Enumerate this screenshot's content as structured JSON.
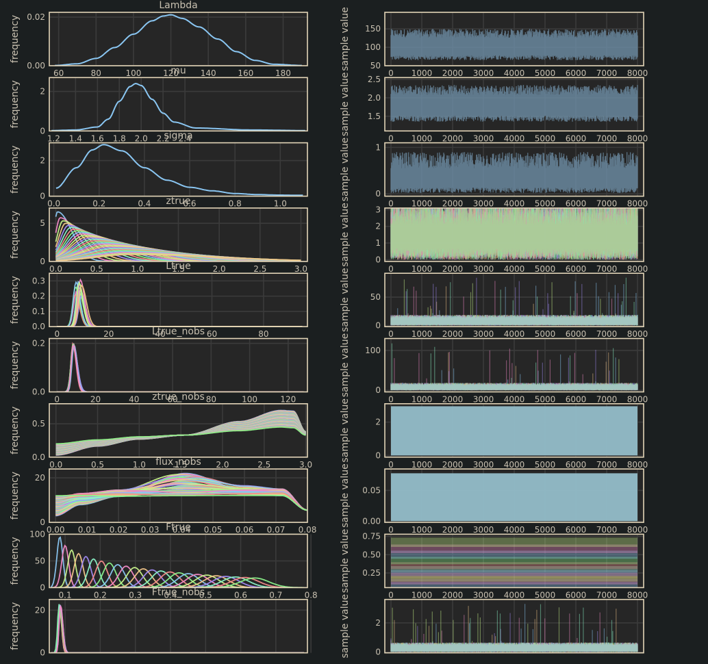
{
  "figure": {
    "style": {
      "background": "#1b1f20",
      "axes_face": "#262626",
      "spine": "#e3d5b8",
      "grid": "#3b3b3b",
      "text": "#c8c0b0"
    },
    "palette": [
      "#8ac6f2",
      "#f28ac6",
      "#c6f28a",
      "#f2c68a",
      "#a08af2",
      "#8af2c6",
      "#f28a8a",
      "#8af28a"
    ]
  },
  "chart_data": [
    {
      "type": "line",
      "role": "density",
      "title": "Lambda",
      "ylabel": "frequency",
      "xlim": [
        55,
        193
      ],
      "ylim": [
        0,
        0.022
      ],
      "xticks": [
        60,
        80,
        100,
        120,
        140,
        160,
        180
      ],
      "xticklabels": [
        "60",
        "80",
        "100",
        "120",
        "140",
        "160",
        "180"
      ],
      "yticks": [
        0,
        0.02
      ],
      "yticklabels": [
        "0.00",
        "0.02"
      ],
      "series": [
        {
          "x": [
            58,
            70,
            80,
            90,
            100,
            110,
            116,
            120,
            126,
            135,
            145,
            155,
            165,
            175,
            190
          ],
          "y": [
            0.0001,
            0.0008,
            0.003,
            0.0075,
            0.013,
            0.0185,
            0.0205,
            0.021,
            0.0195,
            0.016,
            0.011,
            0.0058,
            0.0022,
            0.0006,
            0.0001
          ]
        }
      ]
    },
    {
      "type": "line",
      "role": "trace",
      "ylabel": "sample value",
      "xlim": [
        -200,
        8200
      ],
      "ylim": [
        50,
        195
      ],
      "xticks": [
        0,
        1000,
        2000,
        3000,
        4000,
        5000,
        6000,
        7000,
        8000
      ],
      "xticklabels": [
        "0",
        "1000",
        "2000",
        "3000",
        "4000",
        "5000",
        "6000",
        "7000",
        "8000"
      ],
      "yticks": [
        50,
        100,
        150
      ],
      "yticklabels": [
        "50",
        "100",
        "150"
      ],
      "band": {
        "lo": 65,
        "hi": 150,
        "mean": 110,
        "jitter": 0.6
      },
      "series_count": 1
    },
    {
      "type": "line",
      "role": "density",
      "title": "mu",
      "ylabel": "frequency",
      "xlim": [
        1.16,
        3.52
      ],
      "ylim": [
        0,
        2.7
      ],
      "xticks": [
        1.2,
        1.4,
        1.6,
        1.8,
        2.0,
        2.2,
        2.4
      ],
      "xticklabels": [
        "1.2",
        "1.4",
        "1.6",
        "1.8",
        "2.0",
        "2.2",
        "2.4"
      ],
      "yticks": [
        0,
        2
      ],
      "yticklabels": [
        "0",
        "2"
      ],
      "series": [
        {
          "x": [
            1.18,
            1.4,
            1.6,
            1.7,
            1.8,
            1.9,
            1.95,
            2.0,
            2.1,
            2.2,
            2.3,
            2.5,
            3.0,
            3.5
          ],
          "y": [
            0.02,
            0.05,
            0.2,
            0.6,
            1.5,
            2.25,
            2.4,
            2.3,
            1.6,
            0.9,
            0.45,
            0.15,
            0.05,
            0.02
          ]
        }
      ]
    },
    {
      "type": "line",
      "role": "trace",
      "ylabel": "sample value",
      "xlim": [
        -200,
        8200
      ],
      "ylim": [
        1.1,
        2.55
      ],
      "xticks": [
        0,
        1000,
        2000,
        3000,
        4000,
        5000,
        6000,
        7000,
        8000
      ],
      "xticklabels": [
        "0",
        "1000",
        "2000",
        "3000",
        "4000",
        "5000",
        "6000",
        "7000",
        "8000"
      ],
      "yticks": [
        1.5,
        2.0,
        2.5
      ],
      "yticklabels": [
        "1.5",
        "2.0",
        "2.5"
      ],
      "band": {
        "lo": 1.35,
        "hi": 2.35,
        "mean": 1.9,
        "jitter": 0.6
      },
      "series_count": 1
    },
    {
      "type": "line",
      "role": "density",
      "title": "sigma",
      "ylabel": "frequency",
      "xlim": [
        -0.02,
        1.12
      ],
      "ylim": [
        0,
        3.0
      ],
      "xticks": [
        0.0,
        0.2,
        0.4,
        0.6,
        0.8,
        1.0
      ],
      "xticklabels": [
        "0.0",
        "0.2",
        "0.4",
        "0.6",
        "0.8",
        "1.0"
      ],
      "yticks": [
        0,
        2
      ],
      "yticklabels": [
        "0",
        "2"
      ],
      "series": [
        {
          "x": [
            0.01,
            0.1,
            0.17,
            0.22,
            0.3,
            0.4,
            0.5,
            0.6,
            0.7,
            0.8,
            0.9,
            1.0,
            1.1
          ],
          "y": [
            0.45,
            1.6,
            2.6,
            2.9,
            2.55,
            1.6,
            0.9,
            0.5,
            0.3,
            0.15,
            0.09,
            0.06,
            0.05
          ]
        }
      ]
    },
    {
      "type": "line",
      "role": "trace",
      "ylabel": "sample value",
      "xlim": [
        -200,
        8200
      ],
      "ylim": [
        -0.05,
        1.1
      ],
      "xticks": [
        0,
        1000,
        2000,
        3000,
        4000,
        5000,
        6000,
        7000,
        8000
      ],
      "xticklabels": [
        "0",
        "1000",
        "2000",
        "3000",
        "4000",
        "5000",
        "6000",
        "7000",
        "8000"
      ],
      "yticks": [
        0,
        1
      ],
      "yticklabels": [
        "0",
        "1"
      ],
      "band": {
        "lo": 0.02,
        "hi": 0.85,
        "mean": 0.35,
        "jitter": 0.7
      },
      "series_count": 1
    },
    {
      "type": "line",
      "role": "density",
      "title": "ztrue",
      "ylabel": "frequency",
      "xlim": [
        -0.08,
        3.08
      ],
      "ylim": [
        0,
        7.0
      ],
      "xticks": [
        0.0,
        0.5,
        1.0,
        1.5,
        2.0,
        2.5,
        3.0
      ],
      "xticklabels": [
        "0.0",
        "0.5",
        "1.0",
        "1.5",
        "2.0",
        "2.5",
        "3.0"
      ],
      "yticks": [
        0,
        5
      ],
      "yticklabels": [
        "0",
        "5"
      ],
      "family": {
        "kind": "decay",
        "count": 28,
        "x0": 0.0,
        "x1": 3.0,
        "peak_max": 6.5,
        "peak_min": 0.9
      }
    },
    {
      "type": "line",
      "role": "trace",
      "ylabel": "sample value",
      "xlim": [
        -200,
        8200
      ],
      "ylim": [
        -0.1,
        3.1
      ],
      "xticks": [
        0,
        1000,
        2000,
        3000,
        4000,
        5000,
        6000,
        7000,
        8000
      ],
      "xticklabels": [
        "0",
        "1000",
        "2000",
        "3000",
        "4000",
        "5000",
        "6000",
        "7000",
        "8000"
      ],
      "yticks": [
        0,
        1,
        2,
        3
      ],
      "yticklabels": [
        "0",
        "1",
        "2",
        "3"
      ],
      "band": {
        "lo": 0.0,
        "hi": 3.0,
        "mean": 1.5,
        "jitter": 0.9
      },
      "series_count": 8
    },
    {
      "type": "line",
      "role": "density",
      "title": "Ltrue",
      "ylabel": "frequency",
      "xlim": [
        -3,
        97
      ],
      "ylim": [
        0,
        0.35
      ],
      "xticks": [
        0,
        20,
        40,
        60,
        80
      ],
      "xticklabels": [
        "0",
        "20",
        "40",
        "60",
        "80"
      ],
      "yticks": [
        0,
        0.1,
        0.2,
        0.3
      ],
      "yticklabels": [
        "0.0",
        "0.1",
        "0.2",
        "0.3"
      ],
      "family": {
        "kind": "spike",
        "count": 12,
        "center": 8.5,
        "spread": 1.4,
        "width": 1.8,
        "peak_max": 0.31,
        "peak_min": 0.2,
        "x0": 0,
        "x1": 95
      }
    },
    {
      "type": "line",
      "role": "trace",
      "ylabel": "sample value",
      "xlim": [
        -200,
        8200
      ],
      "ylim": [
        -2,
        92
      ],
      "xticks": [
        0,
        1000,
        2000,
        3000,
        4000,
        5000,
        6000,
        7000,
        8000
      ],
      "xticklabels": [
        "0",
        "1000",
        "2000",
        "3000",
        "4000",
        "5000",
        "6000",
        "7000",
        "8000"
      ],
      "yticks": [
        0,
        50
      ],
      "yticklabels": [
        "0",
        "50"
      ],
      "band": {
        "lo": 0,
        "hi": 20,
        "mean": 8,
        "jitter": 0.5,
        "spikes": 40
      },
      "series_count": 6
    },
    {
      "type": "line",
      "role": "density",
      "title": "Ltrue_nobs",
      "ylabel": "frequency",
      "xlim": [
        -4,
        130
      ],
      "ylim": [
        0,
        0.22
      ],
      "xticks": [
        0,
        20,
        40,
        60,
        80,
        100,
        120
      ],
      "xticklabels": [
        "0",
        "20",
        "40",
        "60",
        "80",
        "100",
        "120"
      ],
      "yticks": [
        0,
        0.2
      ],
      "yticklabels": [
        "0.0",
        "0.2"
      ],
      "family": {
        "kind": "spike",
        "count": 10,
        "center": 8.5,
        "spread": 0.3,
        "width": 2.0,
        "peak_max": 0.2,
        "peak_min": 0.19,
        "x0": 0,
        "x1": 128
      }
    },
    {
      "type": "line",
      "role": "trace",
      "ylabel": "sample value",
      "xlim": [
        -200,
        8200
      ],
      "ylim": [
        -4,
        130
      ],
      "xticks": [
        0,
        1000,
        2000,
        3000,
        4000,
        5000,
        6000,
        7000,
        8000
      ],
      "xticklabels": [
        "0",
        "1000",
        "2000",
        "3000",
        "4000",
        "5000",
        "6000",
        "7000",
        "8000"
      ],
      "yticks": [
        0,
        100
      ],
      "yticklabels": [
        "0",
        "100"
      ],
      "band": {
        "lo": 0,
        "hi": 20,
        "mean": 7,
        "jitter": 0.5,
        "spikes": 30
      },
      "series_count": 6
    },
    {
      "type": "line",
      "role": "density",
      "title": "ztrue_nobs",
      "ylabel": "frequency",
      "xlim": [
        -0.08,
        3.02
      ],
      "ylim": [
        0,
        0.8
      ],
      "xticks": [
        0.0,
        0.5,
        1.0,
        1.5,
        2.0,
        2.5,
        3.0
      ],
      "xticklabels": [
        "0.0",
        "0.5",
        "1.0",
        "1.5",
        "2.0",
        "2.5",
        "3.0"
      ],
      "yticks": [
        0,
        0.5
      ],
      "yticklabels": [
        "0.0",
        "0.5"
      ],
      "family": {
        "kind": "ramp",
        "count": 40,
        "x0": 0.0,
        "x1": 3.0,
        "cross": 1.55,
        "cross_y": 0.33,
        "lo_start": [
          0.03,
          0.2
        ],
        "hi_end": [
          0.7,
          0.45
        ],
        "drop": 0.12
      }
    },
    {
      "type": "line",
      "role": "trace",
      "ylabel": "sample value",
      "xlim": [
        -200,
        8200
      ],
      "ylim": [
        -0.1,
        3.1
      ],
      "xticks": [
        0,
        1000,
        2000,
        3000,
        4000,
        5000,
        6000,
        7000,
        8000
      ],
      "xticklabels": [
        "0",
        "1000",
        "2000",
        "3000",
        "4000",
        "5000",
        "6000",
        "7000",
        "8000"
      ],
      "yticks": [
        0,
        2
      ],
      "yticklabels": [
        "0",
        "2"
      ],
      "fill": {
        "lo": 0.0,
        "hi": 2.95,
        "color": "#93bdc9"
      }
    },
    {
      "type": "line",
      "role": "density",
      "title": "flux_nobs",
      "ylabel": "frequency",
      "xlim": [
        -0.002,
        0.08
      ],
      "ylim": [
        0,
        24
      ],
      "xticks": [
        0.0,
        0.01,
        0.02,
        0.03,
        0.04,
        0.05,
        0.06,
        0.07,
        0.08
      ],
      "xticklabels": [
        "0.00",
        "0.01",
        "0.02",
        "0.03",
        "0.04",
        "0.05",
        "0.06",
        "0.07",
        "0.08"
      ],
      "yticks": [
        0,
        20
      ],
      "yticklabels": [
        "0",
        "20"
      ],
      "family": {
        "kind": "hump",
        "count": 40,
        "x0": 0.0,
        "x1": 0.08,
        "peak_x": [
          0.038,
          0.045
        ],
        "peak_y": [
          12,
          22
        ],
        "start_y": [
          3,
          12
        ],
        "plateau": [
          12,
          15
        ]
      }
    },
    {
      "type": "line",
      "role": "trace",
      "ylabel": "sample value",
      "xlim": [
        -200,
        8200
      ],
      "ylim": [
        -0.002,
        0.085
      ],
      "xticks": [
        0,
        1000,
        2000,
        3000,
        4000,
        5000,
        6000,
        7000,
        8000
      ],
      "xticklabels": [
        "0",
        "1000",
        "2000",
        "3000",
        "4000",
        "5000",
        "6000",
        "7000",
        "8000"
      ],
      "yticks": [
        0.0,
        0.05
      ],
      "yticklabels": [
        "0.00",
        "0.05"
      ],
      "fill": {
        "lo": 0.0,
        "hi": 0.078,
        "color": "#93bdc9"
      }
    },
    {
      "type": "line",
      "role": "density",
      "title": "Ftrue",
      "ylabel": "frequency",
      "xlim": [
        0.055,
        0.79
      ],
      "ylim": [
        0,
        100
      ],
      "xticks": [
        0.1,
        0.2,
        0.3,
        0.4,
        0.5,
        0.6,
        0.7,
        0.8
      ],
      "xticklabels": [
        "0.1",
        "0.2",
        "0.3",
        "0.4",
        "0.5",
        "0.6",
        "0.7",
        "0.8"
      ],
      "yticks": [
        0,
        50,
        100
      ],
      "yticklabels": [
        "0",
        "50",
        "100"
      ],
      "family": {
        "kind": "cascade",
        "count": 24,
        "x_first": 0.085,
        "x_last": 0.64,
        "peak_first": 95,
        "peak_last": 18,
        "x0": 0.06,
        "x1": 0.78
      }
    },
    {
      "type": "line",
      "role": "trace",
      "ylabel": "sample value",
      "xlim": [
        -200,
        8200
      ],
      "ylim": [
        0.05,
        0.78
      ],
      "xticks": [
        0,
        1000,
        2000,
        3000,
        4000,
        5000,
        6000,
        7000,
        8000
      ],
      "xticklabels": [
        "0",
        "1000",
        "2000",
        "3000",
        "4000",
        "5000",
        "6000",
        "7000",
        "8000"
      ],
      "yticks": [
        0.25,
        0.5,
        0.75
      ],
      "yticklabels": [
        "0.25",
        "0.50",
        "0.75"
      ],
      "stack": {
        "levels": [
          0.09,
          0.13,
          0.17,
          0.21,
          0.25,
          0.3,
          0.35,
          0.42,
          0.5,
          0.58,
          0.67
        ],
        "spread": 0.05
      }
    },
    {
      "type": "line",
      "role": "density",
      "title": "Ftrue_nobs",
      "ylabel": "frequency",
      "xlim": [
        0.055,
        0.79
      ],
      "ylim": [
        0,
        25
      ],
      "xticks": [
        0.1,
        0.2,
        0.3,
        0.4,
        0.5,
        0.6,
        0.7,
        0.8
      ],
      "xticklabels": [
        "",
        "",
        "",
        "",
        "",
        "",
        "",
        ""
      ],
      "yticks": [
        0,
        20
      ],
      "yticklabels": [
        "0",
        "20"
      ],
      "family": {
        "kind": "spike",
        "count": 10,
        "center": 0.085,
        "spread": 0.002,
        "width": 0.007,
        "peak_max": 23,
        "peak_min": 21,
        "x0": 0.06,
        "x1": 0.78
      }
    },
    {
      "type": "line",
      "role": "trace",
      "ylabel": "sample value",
      "xlim": [
        -200,
        8200
      ],
      "ylim": [
        -0.05,
        3.6
      ],
      "xticks": [
        0,
        1000,
        2000,
        3000,
        4000,
        5000,
        6000,
        7000,
        8000
      ],
      "xticklabels": [
        "",
        "",
        "",
        "",
        "",
        "",
        "",
        "",
        ""
      ],
      "yticks": [
        0,
        2
      ],
      "yticklabels": [
        "0",
        "2"
      ],
      "band": {
        "lo": 0,
        "hi": 0.7,
        "mean": 0.3,
        "jitter": 0.5,
        "spikes": 40
      },
      "series_count": 6
    }
  ]
}
